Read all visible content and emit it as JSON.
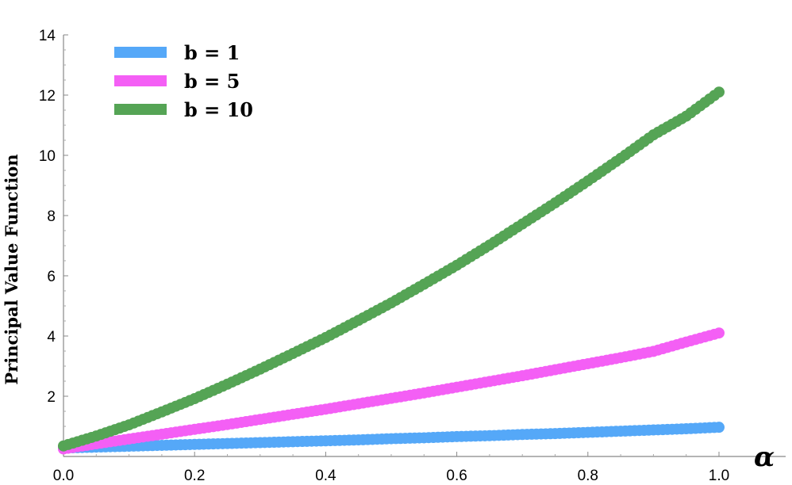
{
  "chart_data": {
    "type": "scatter",
    "title": "",
    "xlabel": "α",
    "ylabel": "Principal Value Function",
    "xlim": [
      0,
      1.0
    ],
    "ylim": [
      0,
      14
    ],
    "xticks": [
      0.0,
      0.2,
      0.4,
      0.6,
      0.8,
      1.0
    ],
    "xtick_labels": [
      "0.0",
      "0.2",
      "0.4",
      "0.6",
      "0.8",
      "1.0"
    ],
    "yticks": [
      2,
      4,
      6,
      8,
      10,
      12,
      14
    ],
    "ytick_labels": [
      "2",
      "4",
      "6",
      "8",
      "10",
      "12",
      "14"
    ],
    "grid": false,
    "legend_position": "top-left",
    "x": [
      0.0,
      0.05,
      0.1,
      0.15,
      0.2,
      0.25,
      0.3,
      0.35,
      0.4,
      0.45,
      0.5,
      0.55,
      0.6,
      0.65,
      0.7,
      0.75,
      0.8,
      0.85,
      0.9,
      0.95,
      1.0
    ],
    "series": [
      {
        "name": "b = 1",
        "color": "#55a8f8",
        "values": [
          0.28,
          0.31,
          0.34,
          0.37,
          0.4,
          0.43,
          0.46,
          0.49,
          0.52,
          0.55,
          0.59,
          0.62,
          0.66,
          0.69,
          0.73,
          0.76,
          0.8,
          0.84,
          0.88,
          0.92,
          0.97
        ]
      },
      {
        "name": "b = 5",
        "color": "#f45ff5",
        "values": [
          0.25,
          0.42,
          0.58,
          0.74,
          0.9,
          1.06,
          1.23,
          1.4,
          1.57,
          1.75,
          1.93,
          2.11,
          2.3,
          2.49,
          2.68,
          2.88,
          3.08,
          3.28,
          3.49,
          3.8,
          4.1
        ]
      },
      {
        "name": "b = 10",
        "color": "#55a455",
        "values": [
          0.35,
          0.68,
          1.05,
          1.48,
          1.92,
          2.4,
          2.9,
          3.42,
          3.95,
          4.52,
          5.1,
          5.72,
          6.35,
          7.02,
          7.72,
          8.42,
          9.15,
          9.9,
          10.68,
          11.3,
          12.1
        ]
      }
    ]
  }
}
